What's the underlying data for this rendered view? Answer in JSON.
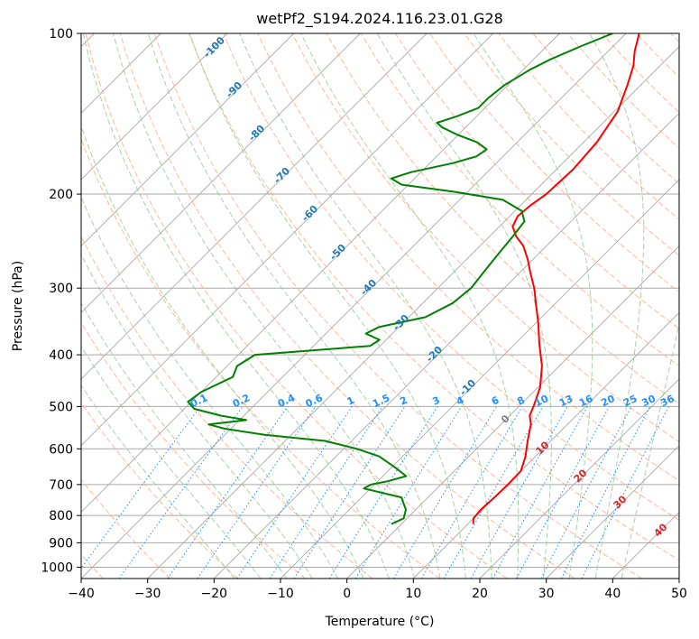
{
  "chart_data": {
    "type": "line",
    "subtype": "skew-t log-p diagram",
    "title": "wetPf2_S194.2024.116.23.01.G28",
    "xlabel": "Temperature (°C)",
    "ylabel": "Pressure (hPa)",
    "xlim": [
      -40,
      50
    ],
    "ylim": [
      1050,
      100
    ],
    "y_scale": "log",
    "x_ticks": [
      -40,
      -30,
      -20,
      -10,
      0,
      10,
      20,
      30,
      40,
      50
    ],
    "x_tick_labels": [
      "−40",
      "−30",
      "−20",
      "−10",
      "0",
      "10",
      "20",
      "30",
      "40",
      "50"
    ],
    "y_ticks": [
      100,
      200,
      300,
      400,
      500,
      600,
      700,
      800,
      900,
      1000
    ],
    "y_tick_labels": [
      "100",
      "200",
      "300",
      "400",
      "500",
      "600",
      "700",
      "800",
      "900",
      "1000"
    ],
    "grid": true,
    "colors": {
      "temperature": "#ff0000",
      "dewpoint": "#008000",
      "isotherm": "#a9a9a9",
      "dry_adiabat": "#ffa07a",
      "moist_adiabat": "#90c890",
      "mixing_ratio": "#1e90ff",
      "dry_label": "#1f77b4",
      "moist_label": "#d62728"
    },
    "series": [
      {
        "key": "temperature",
        "points": [
          {
            "p": 830,
            "t": 10.8
          },
          {
            "p": 810,
            "t": 10.0
          },
          {
            "p": 780,
            "t": 9.8
          },
          {
            "p": 740,
            "t": 10.0
          },
          {
            "p": 700,
            "t": 10.1
          },
          {
            "p": 660,
            "t": 10.0
          },
          {
            "p": 620,
            "t": 8.5
          },
          {
            "p": 580,
            "t": 6.5
          },
          {
            "p": 540,
            "t": 4.5
          },
          {
            "p": 520,
            "t": 3.0
          },
          {
            "p": 500,
            "t": 2.2
          },
          {
            "p": 460,
            "t": 0.3
          },
          {
            "p": 420,
            "t": -2.6
          },
          {
            "p": 400,
            "t": -4.5
          },
          {
            "p": 380,
            "t": -6.5
          },
          {
            "p": 350,
            "t": -9.5
          },
          {
            "p": 320,
            "t": -13.0
          },
          {
            "p": 300,
            "t": -15.5
          },
          {
            "p": 280,
            "t": -18.5
          },
          {
            "p": 265,
            "t": -20.8
          },
          {
            "p": 250,
            "t": -23.5
          },
          {
            "p": 240,
            "t": -26.0
          },
          {
            "p": 230,
            "t": -28.0
          },
          {
            "p": 220,
            "t": -28.8
          },
          {
            "p": 210,
            "t": -28.5
          },
          {
            "p": 200,
            "t": -27.8
          },
          {
            "p": 180,
            "t": -27.5
          },
          {
            "p": 160,
            "t": -28.0
          },
          {
            "p": 140,
            "t": -29.5
          },
          {
            "p": 125,
            "t": -32.0
          },
          {
            "p": 115,
            "t": -34.0
          },
          {
            "p": 108,
            "t": -36.0
          },
          {
            "p": 100,
            "t": -38.0
          }
        ]
      },
      {
        "key": "dewpoint",
        "points": [
          {
            "p": 830,
            "t": -1.5
          },
          {
            "p": 810,
            "t": -0.5
          },
          {
            "p": 780,
            "t": -1.5
          },
          {
            "p": 740,
            "t": -4.0
          },
          {
            "p": 712,
            "t": -11.0
          },
          {
            "p": 700,
            "t": -10.5
          },
          {
            "p": 690,
            "t": -8.5
          },
          {
            "p": 675,
            "t": -6.5
          },
          {
            "p": 650,
            "t": -9.5
          },
          {
            "p": 620,
            "t": -13.5
          },
          {
            "p": 600,
            "t": -18.0
          },
          {
            "p": 580,
            "t": -24.0
          },
          {
            "p": 565,
            "t": -34.0
          },
          {
            "p": 550,
            "t": -41.0
          },
          {
            "p": 540,
            "t": -44.0
          },
          {
            "p": 530,
            "t": -39.0
          },
          {
            "p": 520,
            "t": -43.5
          },
          {
            "p": 505,
            "t": -48.5
          },
          {
            "p": 490,
            "t": -50.5
          },
          {
            "p": 470,
            "t": -50.0
          },
          {
            "p": 440,
            "t": -47.5
          },
          {
            "p": 420,
            "t": -48.5
          },
          {
            "p": 400,
            "t": -47.5
          },
          {
            "p": 385,
            "t": -31.5
          },
          {
            "p": 375,
            "t": -31.0
          },
          {
            "p": 365,
            "t": -34.0
          },
          {
            "p": 355,
            "t": -33.0
          },
          {
            "p": 340,
            "t": -27.5
          },
          {
            "p": 320,
            "t": -25.5
          },
          {
            "p": 300,
            "t": -25.0
          },
          {
            "p": 280,
            "t": -25.5
          },
          {
            "p": 260,
            "t": -26.0
          },
          {
            "p": 240,
            "t": -26.5
          },
          {
            "p": 225,
            "t": -27.0
          },
          {
            "p": 215,
            "t": -29.0
          },
          {
            "p": 205,
            "t": -33.5
          },
          {
            "p": 198,
            "t": -42.0
          },
          {
            "p": 192,
            "t": -51.0
          },
          {
            "p": 187,
            "t": -53.5
          },
          {
            "p": 182,
            "t": -51.5
          },
          {
            "p": 175,
            "t": -46.5
          },
          {
            "p": 170,
            "t": -44.0
          },
          {
            "p": 165,
            "t": -43.5
          },
          {
            "p": 160,
            "t": -46.0
          },
          {
            "p": 155,
            "t": -50.0
          },
          {
            "p": 150,
            "t": -53.5
          },
          {
            "p": 147,
            "t": -55.0
          },
          {
            "p": 143,
            "t": -53.0
          },
          {
            "p": 138,
            "t": -51.0
          },
          {
            "p": 132,
            "t": -51.0
          },
          {
            "p": 125,
            "t": -50.5
          },
          {
            "p": 117,
            "t": -49.0
          },
          {
            "p": 112,
            "t": -47.5
          },
          {
            "p": 106,
            "t": -45.0
          },
          {
            "p": 100,
            "t": -42.0
          }
        ]
      }
    ],
    "dry_adiabat_labels": [
      "-100",
      "-90",
      "-80",
      "-70",
      "-60",
      "-50",
      "-40",
      "-30",
      "-20",
      "-10"
    ],
    "zero_label": "0",
    "moist_adiabat_labels": [
      "10",
      "20",
      "30",
      "40"
    ],
    "mixing_ratio_labels": [
      "0.1",
      "0.2",
      "0.4",
      "0.6",
      "1",
      "1.5",
      "2",
      "3",
      "4",
      "6",
      "8",
      "10",
      "13",
      "16",
      "20",
      "25",
      "30",
      "36"
    ],
    "mixing_ratio_values": [
      0.1,
      0.2,
      0.4,
      0.6,
      1,
      1.5,
      2,
      3,
      4,
      6,
      8,
      10,
      13,
      16,
      20,
      25,
      30,
      36
    ]
  }
}
